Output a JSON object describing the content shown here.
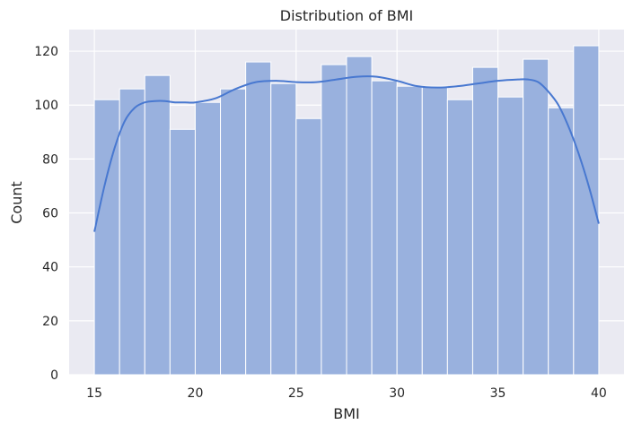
{
  "chart_data": {
    "type": "bar",
    "title": "Distribution of BMI",
    "xlabel": "BMI",
    "ylabel": "Count",
    "xlim": [
      13.75,
      41.25
    ],
    "ylim": [
      0,
      128
    ],
    "x_ticks": [
      15,
      20,
      25,
      30,
      35,
      40
    ],
    "y_ticks": [
      0,
      20,
      40,
      60,
      80,
      100,
      120
    ],
    "grid": true,
    "legend": "none",
    "bins": {
      "edges": [
        15,
        16.25,
        17.5,
        18.75,
        20,
        21.25,
        22.5,
        23.75,
        25,
        26.25,
        27.5,
        28.75,
        30,
        31.25,
        32.5,
        33.75,
        35,
        36.25,
        37.5,
        38.75,
        40
      ],
      "counts": [
        102,
        106,
        111,
        91,
        101,
        106,
        116,
        108,
        95,
        115,
        118,
        109,
        107,
        107,
        102,
        114,
        103,
        117,
        99,
        122
      ]
    },
    "kde": {
      "x": [
        15,
        15.5,
        16,
        16.5,
        17,
        17.5,
        18,
        18.5,
        19,
        19.5,
        20,
        21,
        22,
        23,
        24,
        25,
        26,
        27,
        28,
        29,
        30,
        31,
        32,
        33,
        34,
        35,
        36,
        36.5,
        37,
        37.5,
        38,
        38.5,
        39,
        39.5,
        40
      ],
      "y": [
        53,
        70,
        84,
        94,
        99,
        101,
        101.5,
        101.5,
        101,
        101,
        101,
        102.5,
        106,
        108.5,
        109,
        108.5,
        108.5,
        109.5,
        110.5,
        110.5,
        109,
        107,
        106.5,
        107,
        108,
        109,
        109.5,
        109.5,
        108.5,
        105,
        100,
        92,
        82,
        70,
        56
      ]
    },
    "colors": {
      "background": "#eaeaf2",
      "grid": "#ffffff",
      "bar_fill": "#99b1de",
      "bar_edge": "#ffffff",
      "kde_line": "#4878d0"
    }
  }
}
